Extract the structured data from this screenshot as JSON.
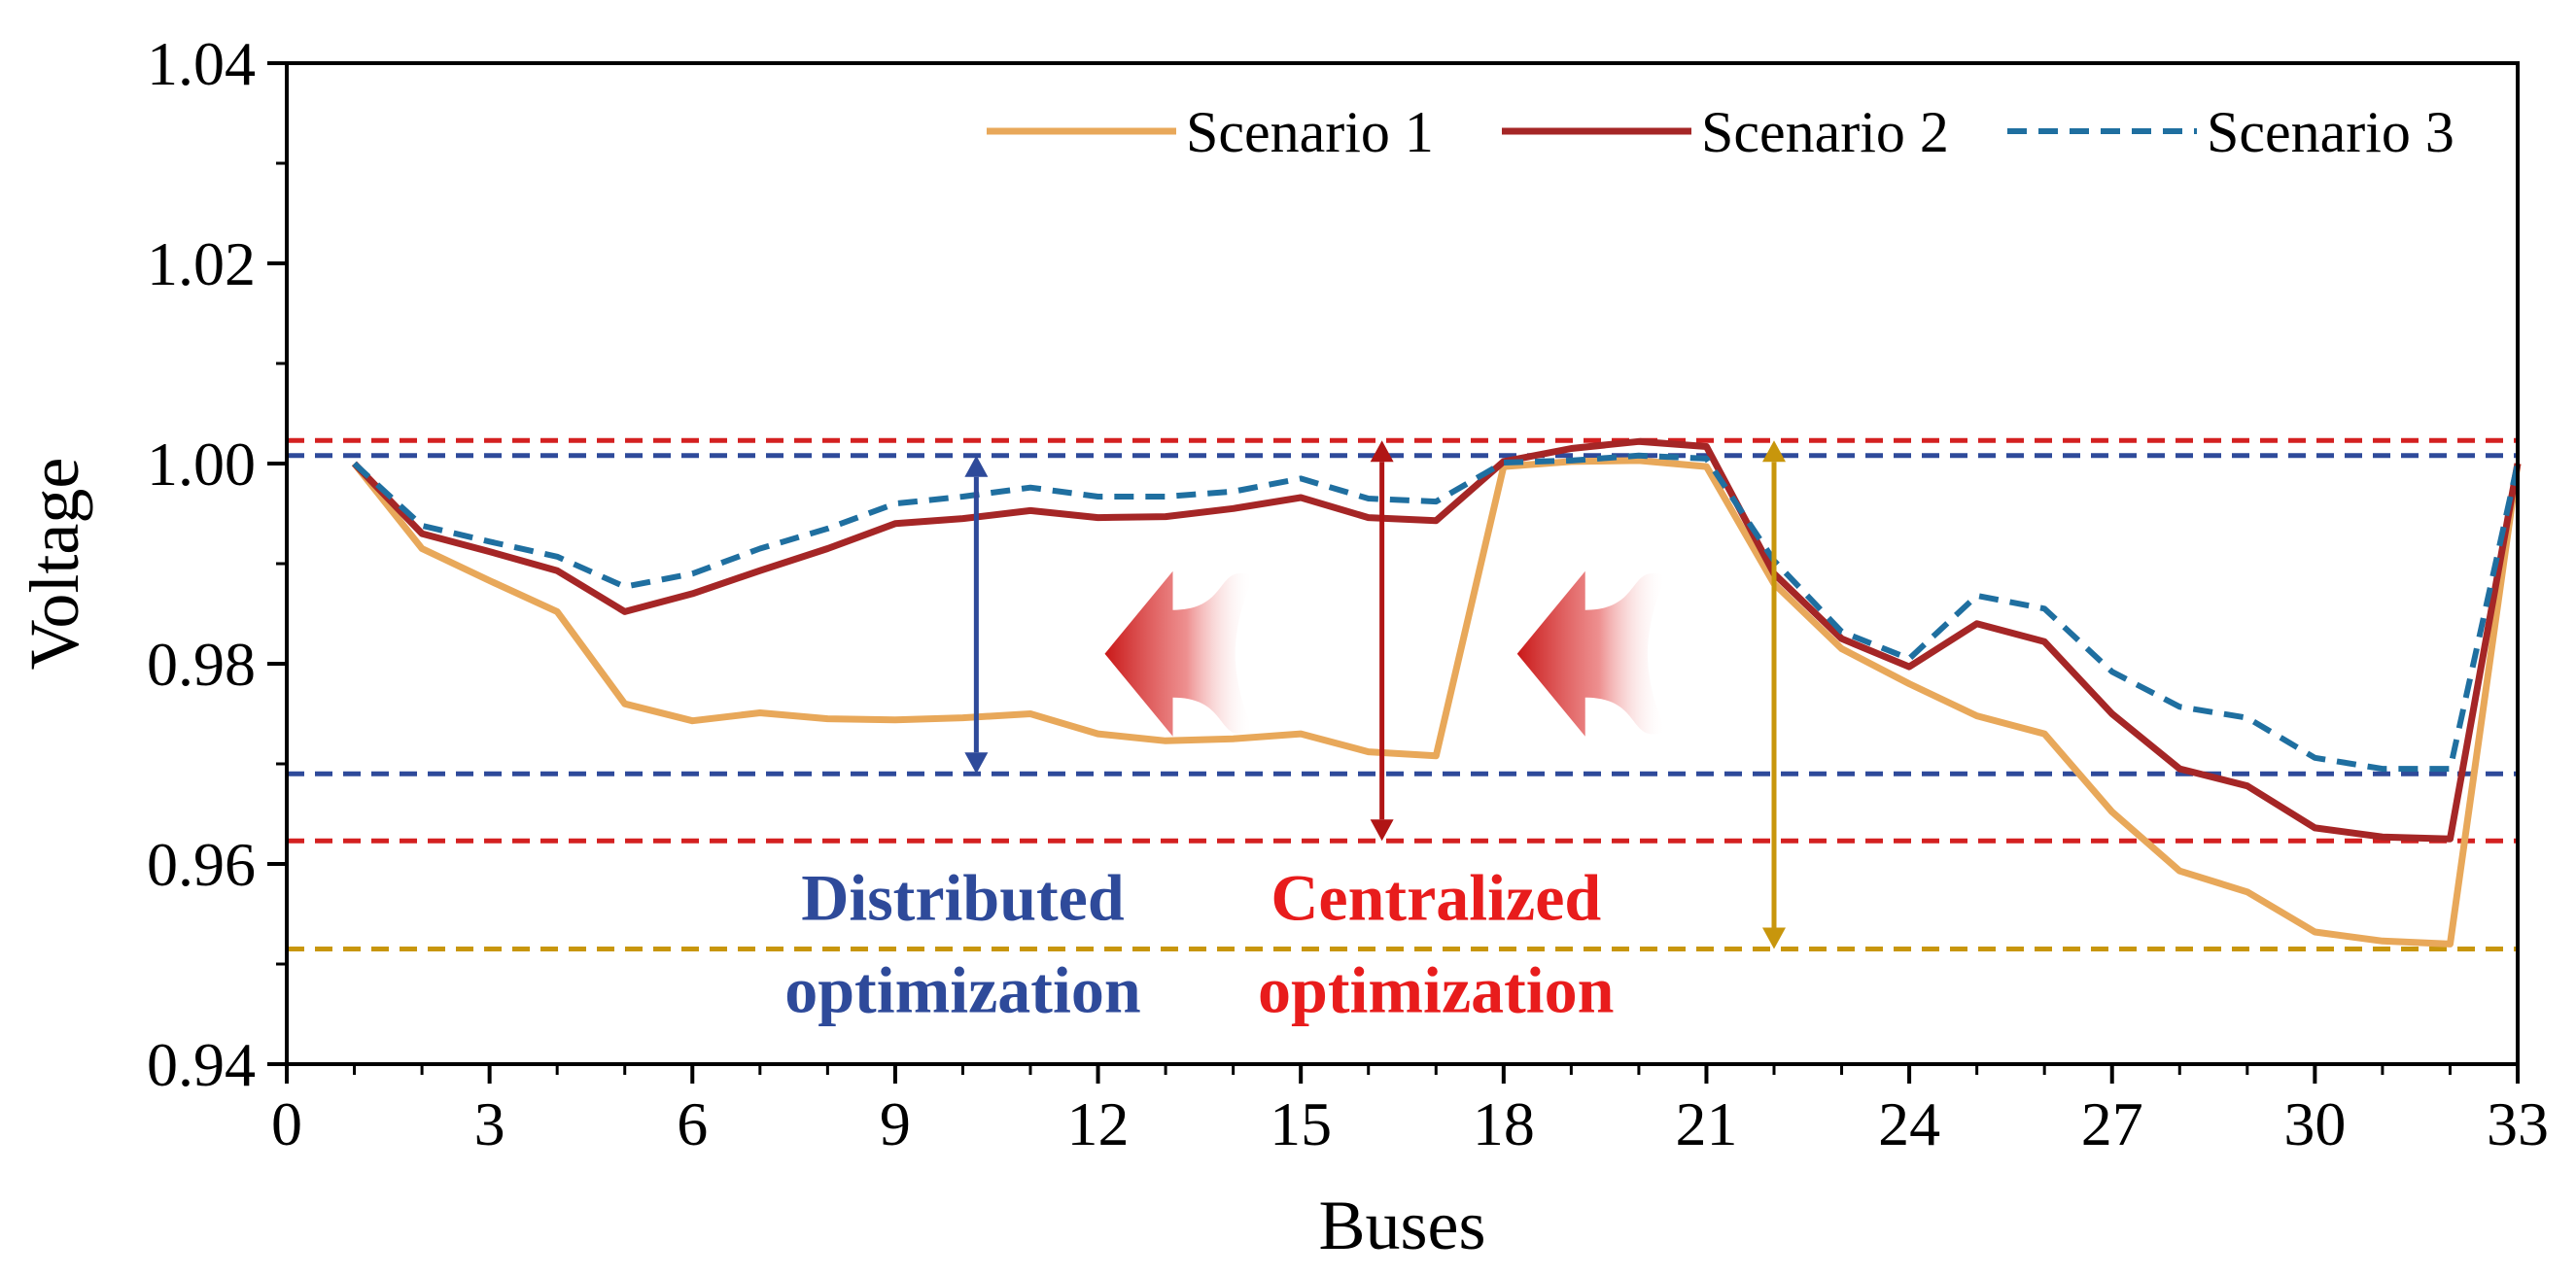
{
  "chart_data": {
    "type": "line",
    "xlabel": "Buses",
    "ylabel": "Voltage",
    "xlim": [
      0,
      33
    ],
    "ylim": [
      0.94,
      1.04
    ],
    "x_ticks": [
      0,
      3,
      6,
      9,
      12,
      15,
      18,
      21,
      24,
      27,
      30,
      33
    ],
    "y_ticks": [
      0.94,
      0.96,
      0.98,
      1.0,
      1.02,
      1.04
    ],
    "y_tick_labels": [
      "0.94",
      "0.96",
      "0.98",
      "1.00",
      "1.02",
      "1.04"
    ],
    "grid": false,
    "legend": {
      "placement": "top-right"
    },
    "x": [
      1,
      2,
      3,
      4,
      5,
      6,
      7,
      8,
      9,
      10,
      11,
      12,
      13,
      14,
      15,
      16,
      17,
      18,
      19,
      20,
      21,
      22,
      23,
      24,
      25,
      26,
      27,
      28,
      29,
      30,
      31,
      32,
      33
    ],
    "series": [
      {
        "name": "Scenario 1",
        "color": "#e8a85a",
        "style": "solid",
        "values": [
          1.0,
          0.9915,
          0.9883,
          0.9852,
          0.976,
          0.9743,
          0.9751,
          0.9745,
          0.9744,
          0.9746,
          0.975,
          0.973,
          0.9723,
          0.9725,
          0.973,
          0.9712,
          0.9708,
          0.9997,
          1.0002,
          1.0003,
          0.9997,
          0.988,
          0.9815,
          0.978,
          0.9748,
          0.973,
          0.9652,
          0.9593,
          0.9572,
          0.9532,
          0.9523,
          0.952,
          1.0
        ]
      },
      {
        "name": "Scenario 2",
        "color": "#a52626",
        "style": "solid",
        "values": [
          1.0,
          0.993,
          0.9912,
          0.9893,
          0.9852,
          0.987,
          0.9893,
          0.9915,
          0.994,
          0.9945,
          0.9953,
          0.9946,
          0.9947,
          0.9955,
          0.9966,
          0.9946,
          0.9943,
          1.0002,
          1.0015,
          1.0022,
          1.0017,
          0.989,
          0.9825,
          0.9797,
          0.984,
          0.9822,
          0.975,
          0.9695,
          0.9678,
          0.9636,
          0.9627,
          0.9625,
          1.0
        ]
      },
      {
        "name": "Scenario 3",
        "color": "#1f6fa0",
        "style": "dashed",
        "values": [
          1.0,
          0.9938,
          0.9922,
          0.9907,
          0.9877,
          0.989,
          0.9915,
          0.9935,
          0.996,
          0.9967,
          0.9976,
          0.9967,
          0.9967,
          0.9972,
          0.9985,
          0.9965,
          0.9962,
          1.0001,
          1.0003,
          1.0008,
          1.0005,
          0.9903,
          0.9832,
          0.9805,
          0.9868,
          0.9855,
          0.9792,
          0.9757,
          0.9746,
          0.9706,
          0.9695,
          0.9695,
          1.0
        ]
      }
    ],
    "reference_lines": [
      {
        "y": 1.0023,
        "color": "#d42020"
      },
      {
        "y": 1.0008,
        "color": "#2e4a9a"
      },
      {
        "y": 0.969,
        "color": "#2e4a9a"
      },
      {
        "y": 0.9623,
        "color": "#d42020"
      },
      {
        "y": 0.9515,
        "color": "#c8960c"
      }
    ],
    "range_arrows": [
      {
        "x": 10.2,
        "y1": 1.0008,
        "y2": 0.969,
        "color": "#2e4a9a"
      },
      {
        "x": 16.2,
        "y1": 1.0023,
        "y2": 0.9623,
        "color": "#b01515"
      },
      {
        "x": 22.0,
        "y1": 1.0023,
        "y2": 0.9515,
        "color": "#c8960c"
      }
    ],
    "annotations": [
      {
        "lines": [
          "Distributed",
          "optimization"
        ],
        "x": 10.0,
        "y": 0.9476,
        "color": "#2e4a9a"
      },
      {
        "lines": [
          "Centralized",
          "optimization"
        ],
        "x": 17.0,
        "y": 0.9476,
        "color": "#e81c1c"
      }
    ],
    "shift_arrows": [
      {
        "x_tip": 12.1,
        "x_tail": 14.3,
        "y": 0.981,
        "color": "#d42020"
      },
      {
        "x_tip": 18.2,
        "x_tail": 20.4,
        "y": 0.981,
        "color": "#d42020"
      }
    ]
  }
}
